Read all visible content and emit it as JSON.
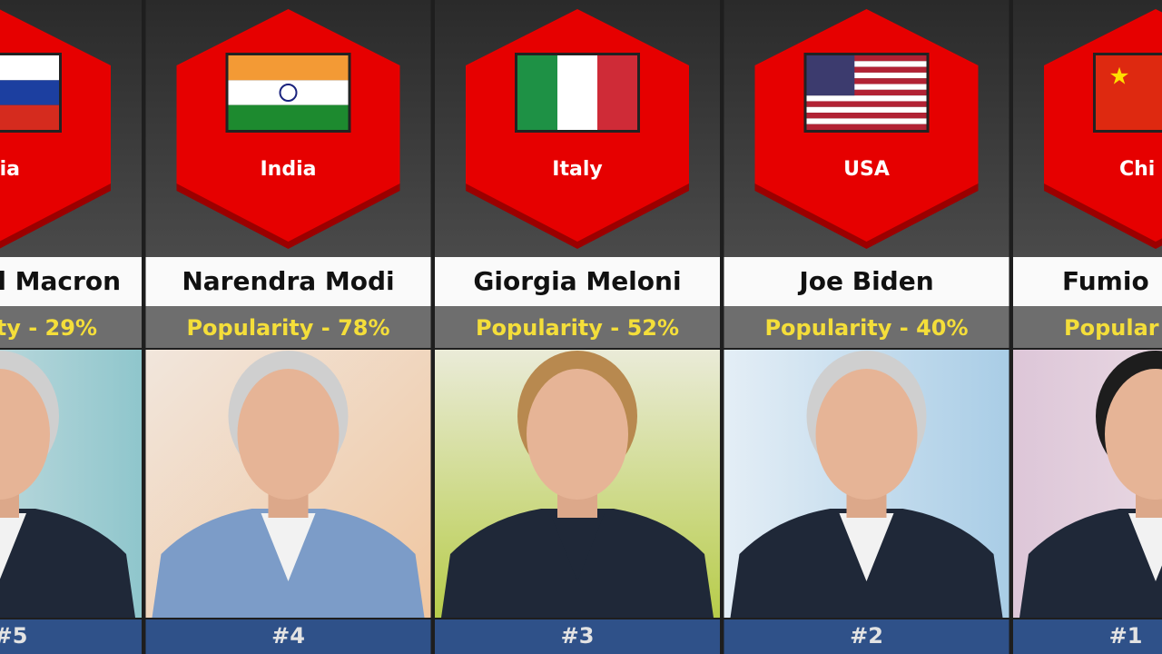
{
  "columns": [
    {
      "country": "ia",
      "name": "el Macron",
      "popularity": "ity - 29%",
      "rank": "#5"
    },
    {
      "country": "India",
      "name": "Narendra Modi",
      "popularity": "Popularity - 78%",
      "rank": "#4"
    },
    {
      "country": "Italy",
      "name": "Giorgia Meloni",
      "popularity": "Popularity - 52%",
      "rank": "#3"
    },
    {
      "country": "USA",
      "name": "Joe Biden",
      "popularity": "Popularity - 40%",
      "rank": "#2"
    },
    {
      "country": "Chi",
      "name": "Fumio",
      "popularity": "Popular",
      "rank": "#1"
    }
  ]
}
